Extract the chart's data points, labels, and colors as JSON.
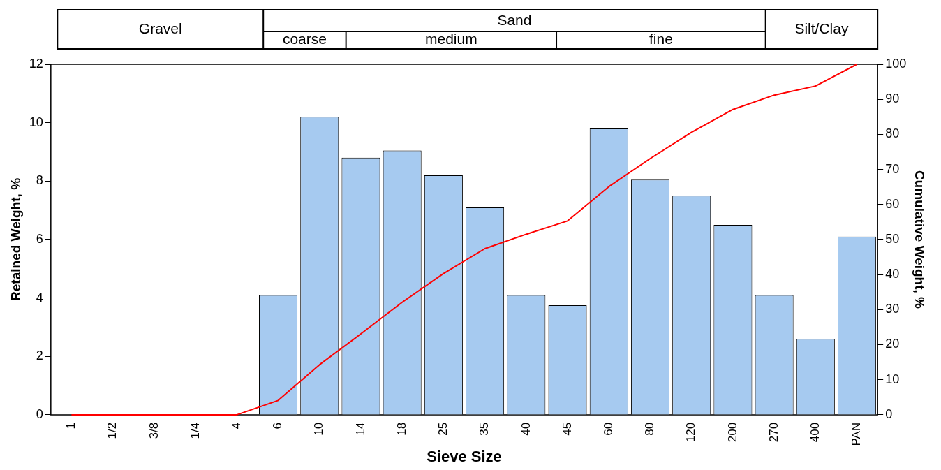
{
  "chart_data": {
    "type": "bar",
    "xlabel": "Sieve Size",
    "ylabel": "Retained Weight, %",
    "y2label": "Cumulative Weight, %",
    "categories": [
      "1",
      "1/2",
      "3/8",
      "1/4",
      "4",
      "6",
      "10",
      "14",
      "18",
      "25",
      "35",
      "40",
      "45",
      "60",
      "80",
      "120",
      "200",
      "270",
      "400",
      "PAN"
    ],
    "series": [
      {
        "color": "#a6caf0",
        "values": [
          0,
          0,
          0,
          0,
          0,
          4.1,
          10.2,
          8.8,
          9.05,
          8.2,
          7.1,
          4.1,
          3.75,
          9.8,
          8.05,
          7.5,
          6.5,
          4.1,
          2.6,
          6.1
        ]
      },
      {
        "type": "line",
        "axis": "y2",
        "color": "#ff0000",
        "marker": "none",
        "values": [
          0,
          0,
          0,
          0,
          0,
          4.1,
          14.3,
          23.1,
          32.1,
          40.3,
          47.4,
          51.5,
          55.3,
          65.1,
          73.1,
          80.6,
          87.1,
          91.2,
          93.8,
          100
        ]
      }
    ],
    "ylim": [
      0,
      12
    ],
    "yticks": [
      0,
      2,
      4,
      6,
      8,
      10,
      12
    ],
    "y2lim": [
      0,
      100
    ],
    "y2ticks": [
      0,
      10,
      20,
      30,
      40,
      50,
      60,
      70,
      80,
      90,
      100
    ],
    "annotations": [
      "Gravel",
      "Sand",
      "coarse",
      "medium",
      "fine",
      "Silt/Clay"
    ],
    "grid": false,
    "legend": false
  }
}
